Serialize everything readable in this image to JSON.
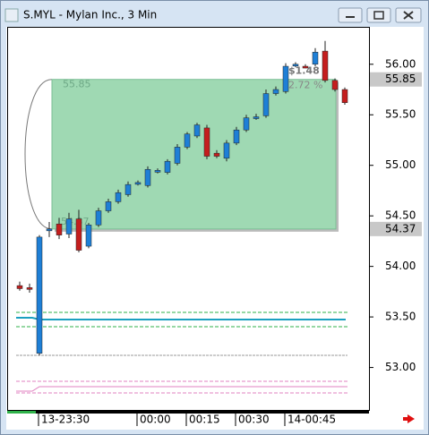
{
  "chart_data": {
    "type": "candlestick",
    "title": "S.MYL - Mylan Inc., 3 Min",
    "categories": [
      null,
      null,
      "13-23:30",
      null,
      null,
      null,
      null,
      null,
      null,
      null,
      null,
      null,
      "00:00",
      null,
      null,
      null,
      null,
      "00:15",
      null,
      null,
      null,
      null,
      "00:30",
      null,
      null,
      null,
      null,
      "14-00:45",
      null,
      null,
      null,
      null,
      null,
      null
    ],
    "open": [
      53.81,
      53.79,
      53.14,
      54.36,
      54.42,
      54.32,
      54.47,
      54.2,
      54.41,
      54.55,
      54.64,
      54.71,
      54.82,
      54.8,
      54.94,
      54.93,
      55.02,
      55.18,
      55.29,
      55.37,
      55.12,
      55.07,
      55.22,
      55.35,
      55.47,
      55.49,
      55.71,
      55.73,
      55.99,
      55.98,
      56.0,
      56.13,
      55.84,
      55.75
    ],
    "high": [
      53.85,
      53.83,
      54.31,
      54.44,
      54.48,
      54.53,
      54.56,
      54.43,
      54.58,
      54.67,
      54.76,
      54.84,
      54.85,
      54.99,
      54.97,
      55.06,
      55.21,
      55.33,
      55.42,
      55.4,
      55.15,
      55.25,
      55.38,
      55.5,
      55.51,
      55.75,
      55.78,
      56.01,
      56.02,
      56.0,
      56.16,
      56.23,
      55.86,
      55.77
    ],
    "low": [
      53.76,
      53.74,
      53.12,
      54.29,
      54.27,
      54.28,
      54.14,
      54.18,
      54.39,
      54.53,
      54.62,
      54.69,
      54.8,
      54.78,
      54.92,
      54.91,
      55.0,
      55.16,
      55.27,
      55.06,
      55.07,
      55.04,
      55.2,
      55.33,
      55.45,
      55.47,
      55.69,
      55.71,
      55.97,
      55.96,
      55.98,
      55.82,
      55.73,
      55.6
    ],
    "close": [
      53.78,
      53.78,
      54.29,
      54.37,
      54.31,
      54.47,
      54.16,
      54.41,
      54.55,
      54.64,
      54.73,
      54.81,
      54.83,
      54.96,
      54.95,
      55.04,
      55.18,
      55.31,
      55.4,
      55.09,
      55.09,
      55.22,
      55.35,
      55.47,
      55.48,
      55.71,
      55.75,
      55.98,
      56.0,
      55.97,
      56.12,
      55.84,
      55.75,
      55.62
    ],
    "up_color": "#1e7fd6",
    "down_color": "#c41e1e",
    "ylim": [
      52.58,
      56.37
    ],
    "yticks": [
      {
        "value": 53,
        "label": "53.00"
      },
      {
        "value": 53.5,
        "label": "53.50"
      },
      {
        "value": 54,
        "label": "54.00"
      },
      {
        "value": 54.5,
        "label": "54.50"
      },
      {
        "value": 55,
        "label": "55.00"
      },
      {
        "value": 55.5,
        "label": "55.50"
      },
      {
        "value": 56,
        "label": "56.00"
      }
    ],
    "price_labels": [
      55.85,
      54.37
    ],
    "measure": {
      "start": 54.37,
      "end": 55.85,
      "change": {
        "value": 1.48,
        "label": "$1.48"
      },
      "percent": {
        "value": 2.72,
        "label": "2.72 %"
      }
    }
  }
}
